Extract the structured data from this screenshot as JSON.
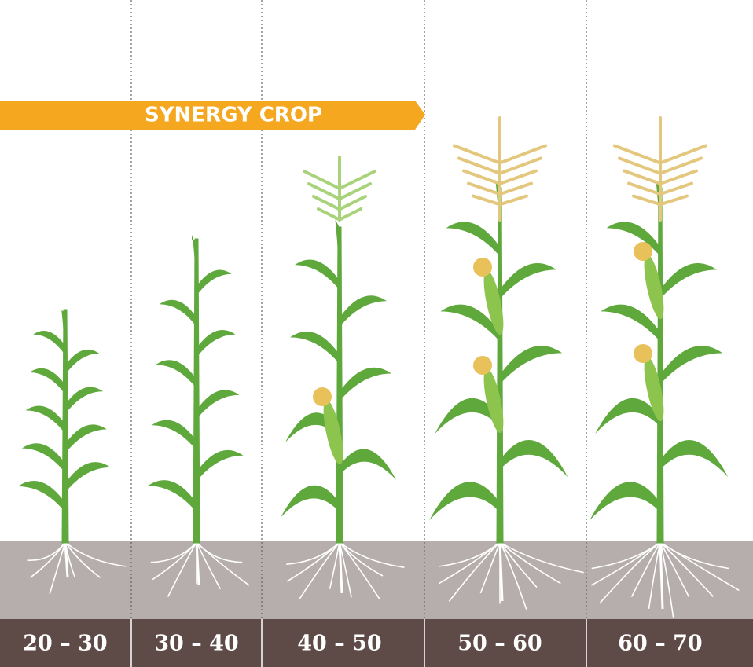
{
  "banner": {
    "text": "SYNERGY CROP"
  },
  "stages": [
    {
      "label": "20 – 30"
    },
    {
      "label": "30 – 40"
    },
    {
      "label": "40 – 50"
    },
    {
      "label": "50 – 60"
    },
    {
      "label": "60 – 70"
    }
  ]
}
